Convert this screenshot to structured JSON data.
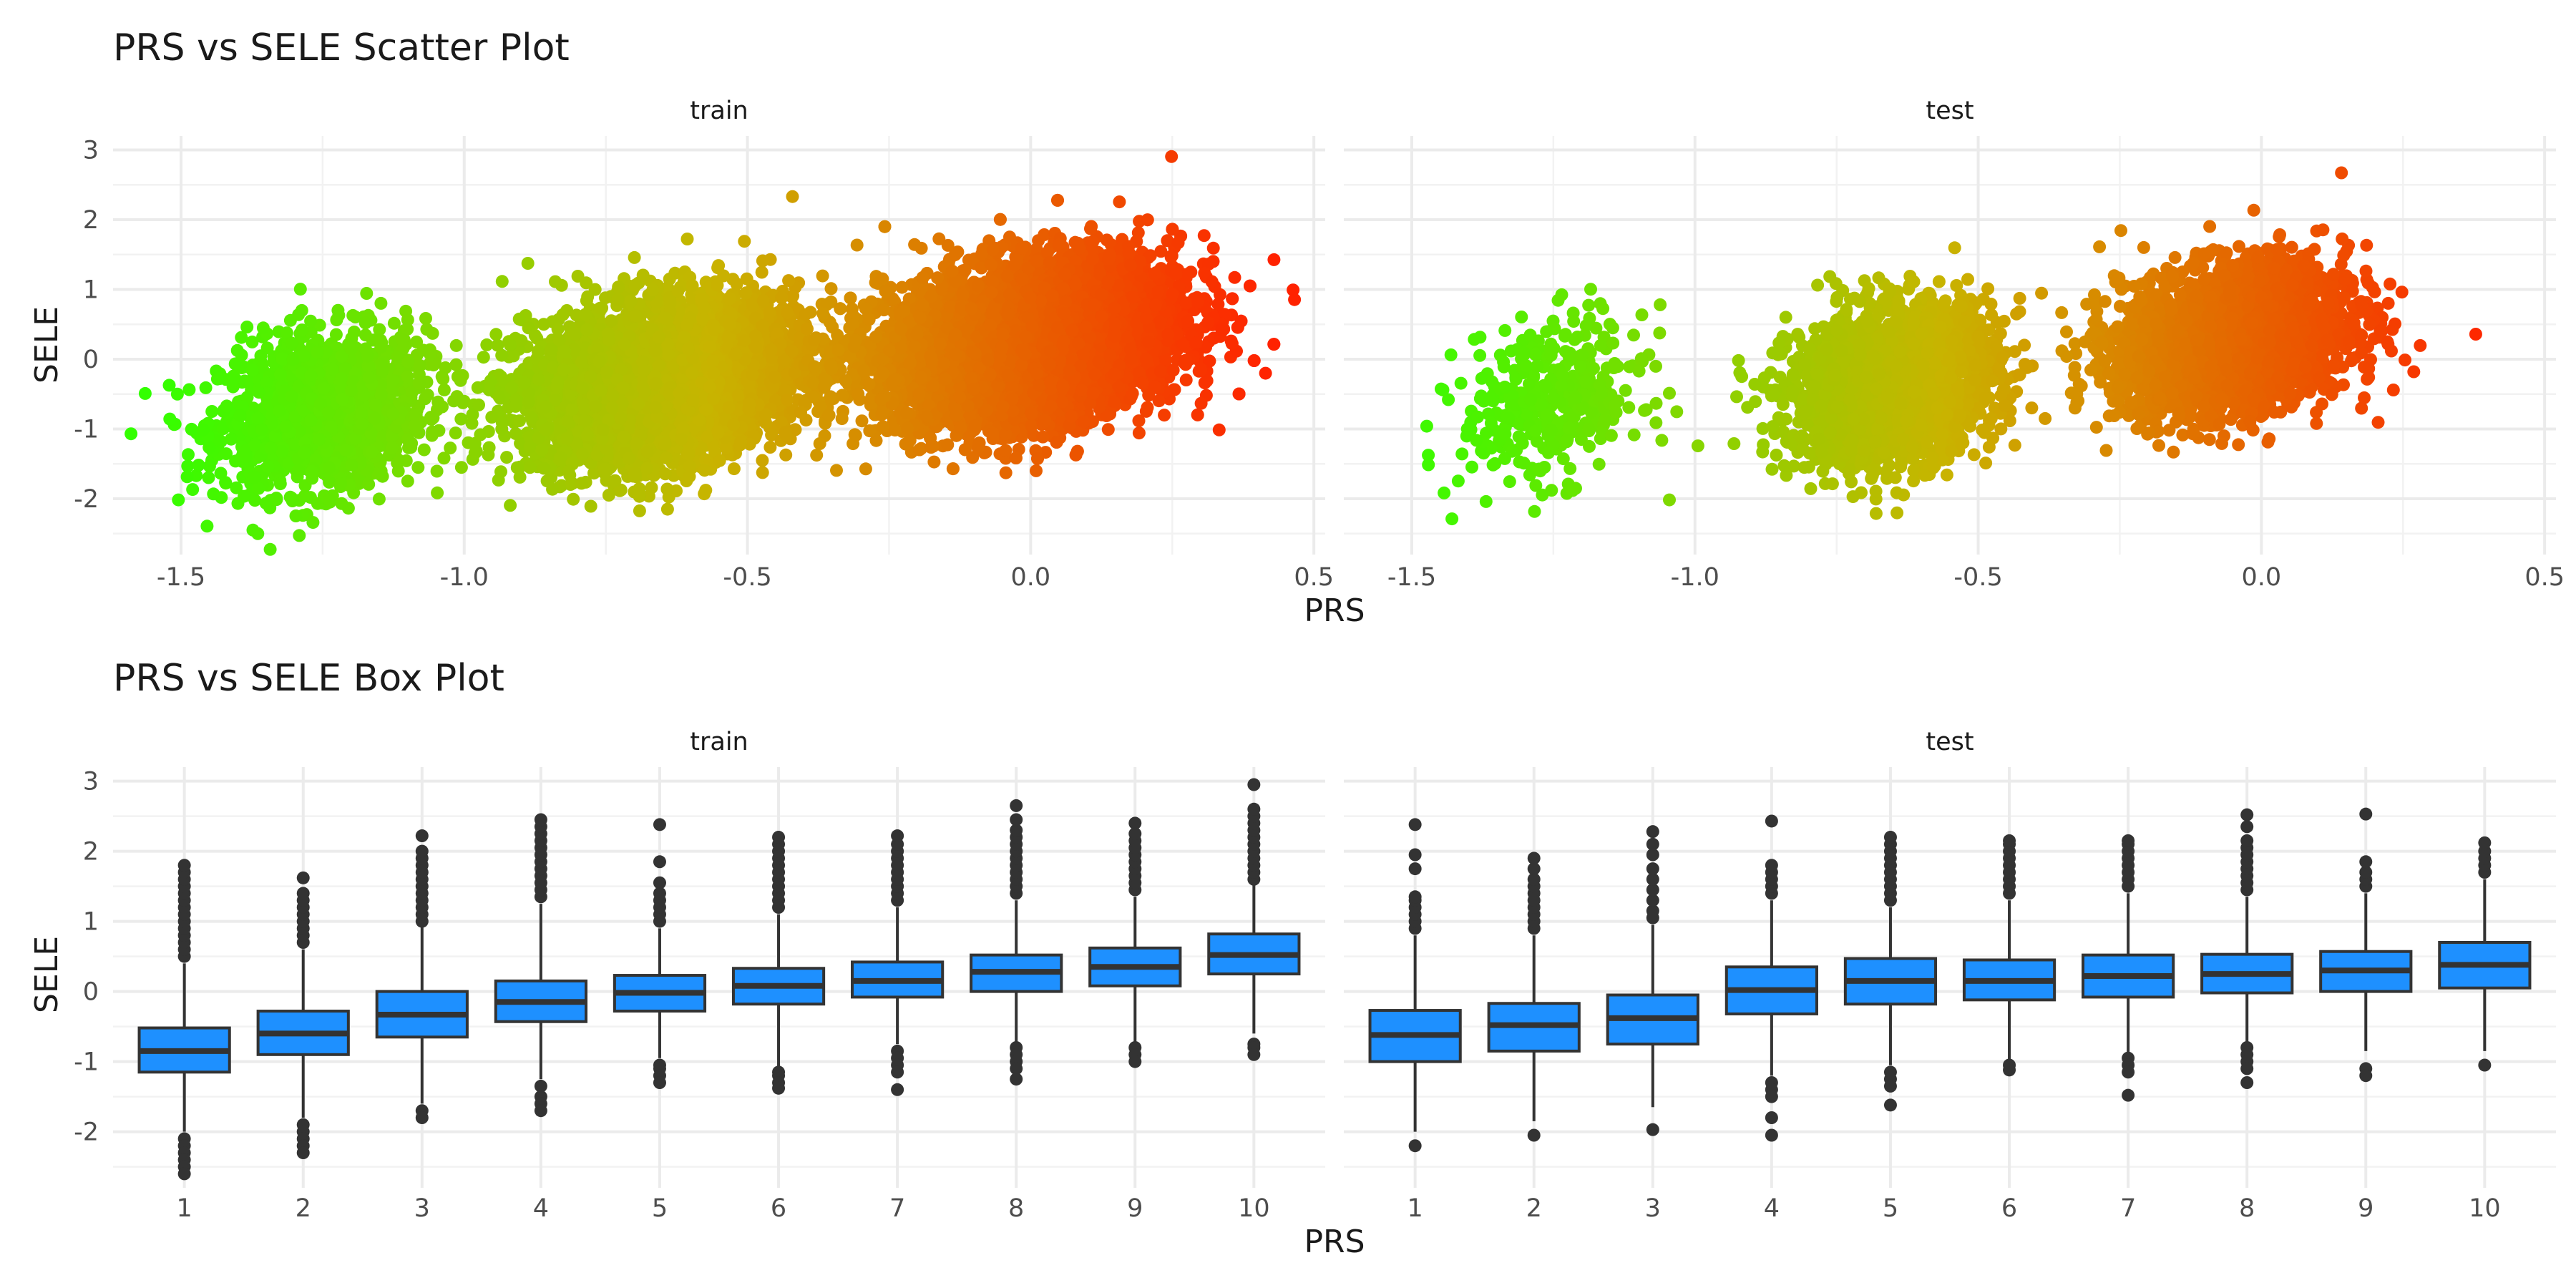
{
  "chart_data": [
    {
      "type": "scatter",
      "title": "PRS vs SELE Scatter Plot",
      "xlabel": "PRS",
      "ylabel": "SELE",
      "facets": [
        "train",
        "test"
      ],
      "xlim": [
        -1.62,
        0.52
      ],
      "ylim": [
        -2.8,
        3.2
      ],
      "x_ticks": [
        "-1.5",
        "-1.0",
        "-0.5",
        "0.0",
        "0.5"
      ],
      "y_ticks": [
        "-2",
        "-1",
        "0",
        "1",
        "2",
        "3"
      ],
      "grid": true,
      "color_gradient": {
        "low": "#33ff00",
        "mid": "#c8b400",
        "high": "#ff2200",
        "by": "PRS"
      },
      "clusters": {
        "train": [
          {
            "x_mean": -1.25,
            "x_sd": 0.09,
            "y_mean": -0.75,
            "y_sd": 0.55,
            "n": 1500
          },
          {
            "x_mean": -0.65,
            "x_sd": 0.12,
            "y_mean": -0.3,
            "y_sd": 0.55,
            "n": 4500
          },
          {
            "x_mean": 0.0,
            "x_sd": 0.13,
            "y_mean": 0.25,
            "y_sd": 0.55,
            "n": 7500
          }
        ],
        "test": [
          {
            "x_mean": -1.25,
            "x_sd": 0.08,
            "y_mean": -0.6,
            "y_sd": 0.55,
            "n": 400
          },
          {
            "x_mean": -0.65,
            "x_sd": 0.09,
            "y_mean": -0.35,
            "y_sd": 0.55,
            "n": 2200
          },
          {
            "x_mean": -0.05,
            "x_sd": 0.1,
            "y_mean": 0.3,
            "y_sd": 0.5,
            "n": 3000
          }
        ]
      }
    },
    {
      "type": "box",
      "title": "PRS vs SELE Box Plot",
      "xlabel": "PRS",
      "ylabel": "SELE",
      "facets": [
        "train",
        "test"
      ],
      "categories": [
        "1",
        "2",
        "3",
        "4",
        "5",
        "6",
        "7",
        "8",
        "9",
        "10"
      ],
      "ylim": [
        -2.8,
        3.2
      ],
      "y_ticks": [
        "-2",
        "-1",
        "0",
        "1",
        "2",
        "3"
      ],
      "grid": true,
      "box_color": "#1e90ff",
      "line_color": "#333333",
      "series": [
        {
          "name": "train",
          "boxes": [
            {
              "q1": -1.15,
              "median": -0.85,
              "q3": -0.52,
              "wlo": -2.0,
              "whi": 0.4,
              "out_hi": [
                0.5,
                0.6,
                0.7,
                0.8,
                0.9,
                1.0,
                1.1,
                1.2,
                1.3,
                1.4,
                1.5,
                1.6,
                1.7,
                1.8
              ],
              "out_lo": [
                -2.1,
                -2.2,
                -2.3,
                -2.4,
                -2.5,
                -2.6
              ]
            },
            {
              "q1": -0.9,
              "median": -0.6,
              "q3": -0.28,
              "wlo": -1.8,
              "whi": 0.6,
              "out_hi": [
                0.7,
                0.8,
                0.9,
                1.0,
                1.1,
                1.2,
                1.3,
                1.4,
                1.62
              ],
              "out_lo": [
                -1.9,
                -2.0,
                -2.1,
                -2.2,
                -2.3
              ]
            },
            {
              "q1": -0.65,
              "median": -0.33,
              "q3": 0.0,
              "wlo": -1.6,
              "whi": 0.95,
              "out_hi": [
                1.0,
                1.1,
                1.2,
                1.3,
                1.4,
                1.5,
                1.6,
                1.7,
                1.8,
                1.9,
                2.0,
                2.22
              ],
              "out_lo": [
                -1.7,
                -1.8
              ]
            },
            {
              "q1": -0.43,
              "median": -0.15,
              "q3": 0.15,
              "wlo": -1.25,
              "whi": 1.25,
              "out_hi": [
                1.35,
                1.45,
                1.55,
                1.65,
                1.75,
                1.85,
                1.95,
                2.05,
                2.15,
                2.25,
                2.35,
                2.45
              ],
              "out_lo": [
                -1.35,
                -1.5,
                -1.6,
                -1.7
              ]
            },
            {
              "q1": -0.28,
              "median": -0.02,
              "q3": 0.23,
              "wlo": -0.95,
              "whi": 0.9,
              "out_hi": [
                1.0,
                1.1,
                1.2,
                1.3,
                1.4,
                1.55,
                1.85,
                2.38
              ],
              "out_lo": [
                -1.05,
                -1.1,
                -1.2,
                -1.3
              ]
            },
            {
              "q1": -0.18,
              "median": 0.08,
              "q3": 0.33,
              "wlo": -1.1,
              "whi": 1.1,
              "out_hi": [
                1.2,
                1.3,
                1.4,
                1.5,
                1.6,
                1.7,
                1.8,
                1.9,
                2.0,
                2.1,
                2.2
              ],
              "out_lo": [
                -1.15,
                -1.2,
                -1.3,
                -1.38
              ]
            },
            {
              "q1": -0.08,
              "median": 0.15,
              "q3": 0.42,
              "wlo": -0.75,
              "whi": 1.2,
              "out_hi": [
                1.3,
                1.4,
                1.5,
                1.6,
                1.7,
                1.8,
                1.9,
                2.0,
                2.1,
                2.22
              ],
              "out_lo": [
                -0.85,
                -0.95,
                -1.05,
                -1.15,
                -1.4
              ]
            },
            {
              "q1": 0.0,
              "median": 0.28,
              "q3": 0.52,
              "wlo": -0.75,
              "whi": 1.3,
              "out_hi": [
                1.4,
                1.5,
                1.6,
                1.7,
                1.8,
                1.9,
                2.0,
                2.1,
                2.2,
                2.3,
                2.45,
                2.65
              ],
              "out_lo": [
                -0.8,
                -0.9,
                -1.0,
                -1.1,
                -1.25
              ]
            },
            {
              "q1": 0.08,
              "median": 0.35,
              "q3": 0.62,
              "wlo": -0.72,
              "whi": 1.35,
              "out_hi": [
                1.45,
                1.55,
                1.65,
                1.75,
                1.85,
                1.95,
                2.05,
                2.15,
                2.25,
                2.4
              ],
              "out_lo": [
                -0.8,
                -0.9,
                -1.0
              ]
            },
            {
              "q1": 0.25,
              "median": 0.52,
              "q3": 0.82,
              "wlo": -0.6,
              "whi": 1.55,
              "out_hi": [
                1.6,
                1.7,
                1.8,
                1.9,
                2.0,
                2.1,
                2.2,
                2.3,
                2.4,
                2.5,
                2.6,
                2.95
              ],
              "out_lo": [
                -0.75,
                -0.8,
                -0.9
              ]
            }
          ]
        },
        {
          "name": "test",
          "boxes": [
            {
              "q1": -1.0,
              "median": -0.62,
              "q3": -0.27,
              "wlo": -2.0,
              "whi": 0.8,
              "out_hi": [
                0.9,
                1.0,
                1.1,
                1.2,
                1.3,
                1.35,
                1.75,
                1.95,
                2.38
              ],
              "out_lo": [
                -2.2
              ]
            },
            {
              "q1": -0.85,
              "median": -0.48,
              "q3": -0.17,
              "wlo": -1.85,
              "whi": 0.8,
              "out_hi": [
                0.9,
                1.0,
                1.1,
                1.2,
                1.3,
                1.4,
                1.5,
                1.6,
                1.75,
                1.9
              ],
              "out_lo": [
                -2.05
              ]
            },
            {
              "q1": -0.75,
              "median": -0.38,
              "q3": -0.05,
              "wlo": -1.65,
              "whi": 0.95,
              "out_hi": [
                1.05,
                1.15,
                1.3,
                1.45,
                1.6,
                1.75,
                1.95,
                2.1,
                2.28
              ],
              "out_lo": [
                -1.97
              ]
            },
            {
              "q1": -0.32,
              "median": 0.02,
              "q3": 0.35,
              "wlo": -1.2,
              "whi": 1.3,
              "out_hi": [
                1.4,
                1.5,
                1.6,
                1.7,
                1.8,
                2.43
              ],
              "out_lo": [
                -1.3,
                -1.4,
                -1.5,
                -1.8,
                -2.05
              ]
            },
            {
              "q1": -0.18,
              "median": 0.15,
              "q3": 0.47,
              "wlo": -1.05,
              "whi": 1.2,
              "out_hi": [
                1.3,
                1.4,
                1.5,
                1.6,
                1.7,
                1.8,
                1.9,
                2.0,
                2.1,
                2.2
              ],
              "out_lo": [
                -1.15,
                -1.25,
                -1.35,
                -1.62
              ]
            },
            {
              "q1": -0.12,
              "median": 0.15,
              "q3": 0.45,
              "wlo": -1.0,
              "whi": 1.3,
              "out_hi": [
                1.4,
                1.5,
                1.6,
                1.7,
                1.8,
                1.9,
                2.0,
                2.1,
                2.15
              ],
              "out_lo": [
                -1.05,
                -1.12
              ]
            },
            {
              "q1": -0.08,
              "median": 0.22,
              "q3": 0.52,
              "wlo": -0.9,
              "whi": 1.4,
              "out_hi": [
                1.5,
                1.6,
                1.7,
                1.8,
                1.9,
                2.0,
                2.1,
                2.15
              ],
              "out_lo": [
                -0.95,
                -1.05,
                -1.15,
                -1.48
              ]
            },
            {
              "q1": -0.02,
              "median": 0.25,
              "q3": 0.53,
              "wlo": -0.75,
              "whi": 1.35,
              "out_hi": [
                1.45,
                1.55,
                1.65,
                1.75,
                1.85,
                1.95,
                2.05,
                2.15,
                2.35,
                2.52
              ],
              "out_lo": [
                -0.8,
                -0.9,
                -1.0,
                -1.1,
                -1.3
              ]
            },
            {
              "q1": 0.0,
              "median": 0.3,
              "q3": 0.57,
              "wlo": -0.85,
              "whi": 1.4,
              "out_hi": [
                1.5,
                1.6,
                1.7,
                1.85,
                2.53
              ],
              "out_lo": [
                -1.1,
                -1.2
              ]
            },
            {
              "q1": 0.05,
              "median": 0.38,
              "q3": 0.7,
              "wlo": -0.85,
              "whi": 1.6,
              "out_hi": [
                1.7,
                1.8,
                1.9,
                2.0,
                2.12
              ],
              "out_lo": [
                -1.05
              ]
            }
          ]
        }
      ]
    }
  ]
}
